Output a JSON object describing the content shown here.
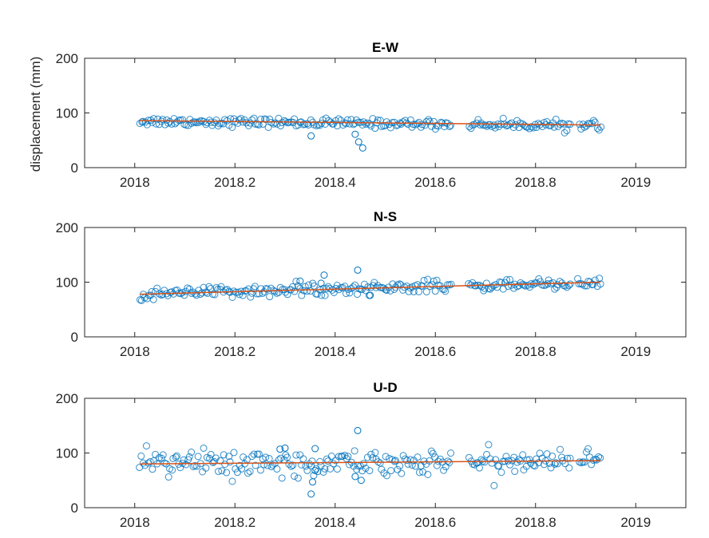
{
  "colors": {
    "points": "#0072BD",
    "trend": "#D95319",
    "axis": "#262626"
  },
  "chart_data": [
    {
      "type": "scatter",
      "title": "E-W",
      "ylabel": "displacement (mm)",
      "xlim": [
        2017.9,
        2019.1
      ],
      "ylim": [
        0,
        200
      ],
      "xticks": [
        2018,
        2018.2,
        2018.4,
        2018.6,
        2018.8,
        2019
      ],
      "xtick_labels": [
        "2018",
        "2018.2",
        "2018.4",
        "2018.6",
        "2018.8",
        "2019"
      ],
      "yticks": [
        0,
        100,
        200
      ],
      "ytick_labels": [
        "0",
        "100",
        "200"
      ],
      "trend": {
        "x": [
          2018.01,
          2018.93
        ],
        "y": [
          86,
          78
        ]
      },
      "outliers": {
        "x": [
          2018.352,
          2018.44,
          2018.447,
          2018.455
        ],
        "y": [
          58,
          61,
          47,
          36
        ]
      },
      "noise": 4,
      "base": {
        "x0": 2018.01,
        "x1": 2018.93,
        "y0": 85,
        "y1": 77
      },
      "gaps": [
        [
          2018.635,
          2018.665
        ],
        [
          2018.872,
          2018.884
        ]
      ]
    },
    {
      "type": "scatter",
      "title": "N-S",
      "ylabel": "",
      "xlim": [
        2017.9,
        2019.1
      ],
      "ylim": [
        0,
        200
      ],
      "xticks": [
        2018,
        2018.2,
        2018.4,
        2018.6,
        2018.8,
        2019
      ],
      "xtick_labels": [
        "2018",
        "2018.2",
        "2018.4",
        "2018.6",
        "2018.8",
        "2019"
      ],
      "yticks": [
        0,
        100,
        200
      ],
      "ytick_labels": [
        "0",
        "100",
        "200"
      ],
      "trend": {
        "x": [
          2018.01,
          2018.93
        ],
        "y": [
          78,
          100
        ]
      },
      "outliers": {
        "x": [
          2018.33,
          2018.372,
          2018.378,
          2018.445,
          2018.47
        ],
        "y": [
          102,
          98,
          113,
          122,
          76
        ]
      },
      "noise": 5,
      "base": {
        "x0": 2018.01,
        "x1": 2018.93,
        "y0": 78,
        "y1": 100
      },
      "gaps": [
        [
          2018.635,
          2018.665
        ],
        [
          2018.872,
          2018.884
        ]
      ]
    },
    {
      "type": "scatter",
      "title": "U-D",
      "ylabel": "",
      "xlim": [
        2017.9,
        2019.1
      ],
      "ylim": [
        0,
        200
      ],
      "xticks": [
        2018,
        2018.2,
        2018.4,
        2018.6,
        2018.8,
        2019
      ],
      "xtick_labels": [
        "2018",
        "2018.2",
        "2018.4",
        "2018.6",
        "2018.8",
        "2019"
      ],
      "yticks": [
        0,
        100,
        200
      ],
      "ytick_labels": [
        "0",
        "100",
        "200"
      ],
      "trend": {
        "x": [
          2018.01,
          2018.93
        ],
        "y": [
          80,
          86
        ]
      },
      "outliers": {
        "x": [
          2018.352,
          2018.355,
          2018.36,
          2018.44,
          2018.445,
          2018.452,
          2018.36,
          2018.3,
          2018.29
        ],
        "y": [
          25,
          47,
          68,
          57,
          141,
          50,
          108,
          109,
          107
        ]
      },
      "noise": 11,
      "base": {
        "x0": 2018.01,
        "x1": 2018.93,
        "y0": 80,
        "y1": 86
      },
      "gaps": [
        [
          2018.635,
          2018.665
        ],
        [
          2018.872,
          2018.884
        ]
      ]
    }
  ]
}
